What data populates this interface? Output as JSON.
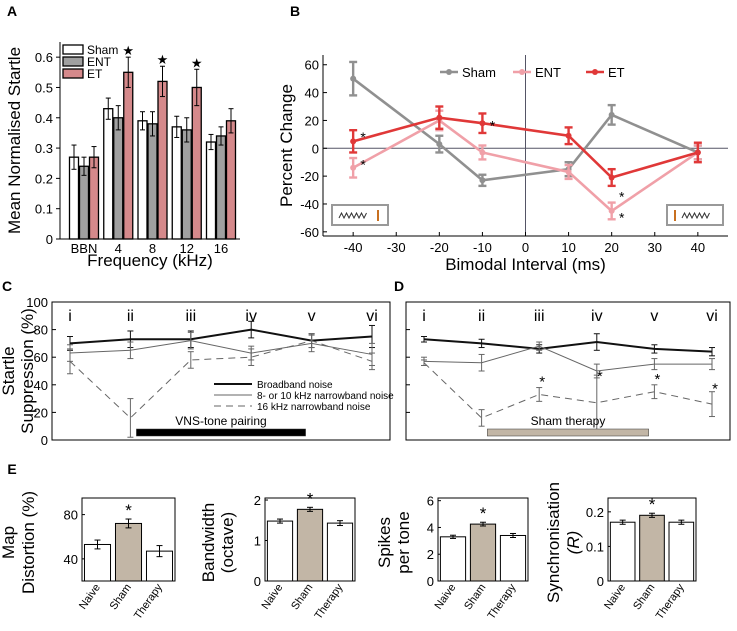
{
  "chart_data": [
    {
      "id": "A",
      "panel_label": "A",
      "type": "bar",
      "ylabel": "Mean Normalised Startle",
      "xlabel": "Frequency (kHz)",
      "ylim": [
        0,
        0.65
      ],
      "yticks": [
        0,
        0.1,
        0.2,
        0.3,
        0.4,
        0.5,
        0.6
      ],
      "ytick_labels": [
        "0",
        "0.1",
        "0.2",
        "0.3",
        "0.4",
        "0.5",
        "0.6"
      ],
      "categories": [
        "BBN",
        "4",
        "8",
        "12",
        "16"
      ],
      "series": [
        {
          "name": "Sham",
          "color": "#ffffff",
          "values": [
            0.27,
            0.43,
            0.39,
            0.37,
            0.32
          ],
          "errors": [
            0.04,
            0.035,
            0.03,
            0.035,
            0.025
          ]
        },
        {
          "name": "ENT",
          "color": "#a0a0a0",
          "values": [
            0.24,
            0.4,
            0.38,
            0.36,
            0.34
          ],
          "errors": [
            0.03,
            0.04,
            0.04,
            0.04,
            0.03
          ]
        },
        {
          "name": "ET",
          "color": "#d5898b",
          "values": [
            0.27,
            0.55,
            0.52,
            0.5,
            0.39
          ],
          "errors": [
            0.035,
            0.05,
            0.05,
            0.06,
            0.04
          ]
        }
      ],
      "significance_marks": [
        {
          "category": "4",
          "symbol": "★"
        },
        {
          "category": "8",
          "symbol": "★"
        },
        {
          "category": "12",
          "symbol": "★"
        }
      ]
    },
    {
      "id": "B",
      "panel_label": "B",
      "type": "line",
      "ylabel": "Percent Change",
      "xlabel": "Bimodal Interval (ms)",
      "xlim": [
        -47,
        47
      ],
      "ylim": [
        -63,
        67
      ],
      "xticks": [
        -40,
        -30,
        -20,
        -10,
        0,
        10,
        20,
        30,
        40
      ],
      "xtick_labels": [
        "-40",
        "-30",
        "-20",
        "-10",
        "0",
        "10",
        "20",
        "30",
        "40"
      ],
      "yticks": [
        -60,
        -40,
        -20,
        0,
        20,
        40,
        60
      ],
      "ytick_labels": [
        "-60",
        "-40",
        "-20",
        "0",
        "20",
        "40",
        "60"
      ],
      "x": [
        -40,
        -20,
        -10,
        10,
        20,
        40
      ],
      "series": [
        {
          "name": "Sham",
          "color": "#909090",
          "values": [
            50,
            3,
            -23,
            -15,
            24,
            -3
          ],
          "errors": [
            12,
            6,
            4,
            5,
            7,
            5
          ]
        },
        {
          "name": "ENT",
          "color": "#f0a0a8",
          "values": [
            -14,
            20,
            -3,
            -17,
            -45,
            -3
          ],
          "errors": [
            7,
            7,
            5,
            5,
            6,
            5
          ]
        },
        {
          "name": "ET",
          "color": "#e03838",
          "values": [
            5,
            22,
            18,
            9,
            -21,
            -3
          ],
          "errors": [
            8,
            8,
            7,
            6,
            6,
            7
          ]
        }
      ],
      "significance_marks": [
        {
          "x": -40,
          "y": 9,
          "symbol": "*"
        },
        {
          "x": -40,
          "y": -11,
          "symbol": "*"
        },
        {
          "x": -10,
          "y": 17,
          "symbol": "*"
        },
        {
          "x": 20,
          "y": -34,
          "symbol": "*"
        },
        {
          "x": 20,
          "y": -49,
          "symbol": "*"
        }
      ]
    },
    {
      "id": "C",
      "panel_label": "C",
      "type": "line",
      "ylabel_lines": [
        "Startle",
        "Suppression (%)"
      ],
      "ylim": [
        0,
        100
      ],
      "yticks": [
        0,
        20,
        40,
        60,
        80,
        100
      ],
      "ytick_labels": [
        "0",
        "20",
        "40",
        "60",
        "80",
        "100"
      ],
      "session_labels": [
        "i",
        "ii",
        "iii",
        "iv",
        "v",
        "vi"
      ],
      "legend": [
        "Broadband noise",
        "8-  or 10 kHz narrowband noise",
        "16 kHz narrowband noise"
      ],
      "bar_label": "VNS-tone pairing",
      "bar_color": "#000000",
      "bar_range": [
        1.1,
        3.9
      ],
      "series": [
        {
          "name": "Broadband noise",
          "style": "solid-thick",
          "values": [
            70,
            73,
            73,
            80,
            72,
            75
          ],
          "errors": [
            5,
            6,
            6,
            6,
            5,
            8
          ]
        },
        {
          "name": "8-  or 10 kHz narrowband noise",
          "style": "solid-thin",
          "values": [
            63,
            65,
            72,
            63,
            70,
            62
          ],
          "errors": [
            6,
            6,
            6,
            5,
            6,
            8
          ]
        },
        {
          "name": "16 kHz narrowband noise",
          "style": "dashed",
          "values": [
            57,
            16,
            58,
            60,
            72,
            57
          ],
          "errors": [
            9,
            14,
            6,
            6,
            5,
            6
          ]
        }
      ]
    },
    {
      "id": "D",
      "panel_label": "D",
      "type": "line",
      "ylim": [
        0,
        100
      ],
      "yticks": [
        0,
        20,
        40,
        60,
        80,
        100
      ],
      "session_labels": [
        "i",
        "ii",
        "iii",
        "iv",
        "v",
        "vi"
      ],
      "bar_label": "Sham therapy",
      "bar_color": "#c2b6a6",
      "bar_range": [
        1.1,
        3.9
      ],
      "series": [
        {
          "name": "Broadband noise",
          "style": "solid-thick",
          "values": [
            73,
            70,
            66,
            71,
            66,
            64
          ],
          "errors": [
            2,
            3,
            3,
            6,
            3,
            3
          ]
        },
        {
          "name": "8-  or 10 kHz narrowband noise",
          "style": "solid-thin",
          "values": [
            57,
            56,
            68,
            50,
            55,
            55
          ],
          "errors": [
            3,
            6,
            3,
            5,
            4,
            4
          ]
        },
        {
          "name": "16 kHz narrowband noise",
          "style": "dashed",
          "values": [
            56,
            16,
            33,
            27,
            35,
            26
          ],
          "errors": [
            2,
            6,
            5,
            20,
            5,
            9
          ]
        }
      ],
      "significance_marks": [
        {
          "session": 2,
          "y": 43,
          "symbol": "*"
        },
        {
          "session": 3,
          "y": 47,
          "symbol": "*"
        },
        {
          "session": 4,
          "y": 45,
          "symbol": "*"
        },
        {
          "session": 5,
          "y": 38,
          "symbol": "*"
        }
      ]
    },
    {
      "id": "E1",
      "panel_label": "E",
      "type": "bar",
      "ylabel_lines": [
        "Map",
        "Distortion (%)"
      ],
      "ylim": [
        20,
        95
      ],
      "yticks": [
        40,
        80
      ],
      "ytick_labels": [
        "40",
        "80"
      ],
      "categories": [
        "Naive",
        "Sham",
        "Therapy"
      ],
      "values": [
        53,
        72,
        47
      ],
      "errors": [
        4,
        4,
        5
      ],
      "colors": [
        "#ffffff",
        "#c2b6a6",
        "#ffffff"
      ],
      "significance_marks": [
        {
          "category": "Sham",
          "symbol": "*"
        }
      ]
    },
    {
      "id": "E2",
      "type": "bar",
      "ylabel_lines": [
        "Bandwidth",
        "(octave)"
      ],
      "ylim": [
        0,
        2.05
      ],
      "yticks": [
        0,
        1,
        2
      ],
      "ytick_labels": [
        "0",
        "1",
        "2"
      ],
      "categories": [
        "Naive",
        "Sham",
        "Therapy"
      ],
      "values": [
        1.48,
        1.77,
        1.43
      ],
      "errors": [
        0.05,
        0.05,
        0.06
      ],
      "colors": [
        "#ffffff",
        "#c2b6a6",
        "#ffffff"
      ],
      "significance_marks": [
        {
          "category": "Sham",
          "symbol": "*"
        }
      ]
    },
    {
      "id": "E3",
      "type": "bar",
      "ylabel_lines": [
        "Spikes",
        "per tone"
      ],
      "ylim": [
        0,
        6.2
      ],
      "yticks": [
        0,
        2,
        4,
        6
      ],
      "ytick_labels": [
        "0",
        "2",
        "4",
        "6"
      ],
      "categories": [
        "Naive",
        "Sham",
        "Therapy"
      ],
      "values": [
        3.3,
        4.25,
        3.4
      ],
      "errors": [
        0.12,
        0.14,
        0.15
      ],
      "colors": [
        "#ffffff",
        "#c2b6a6",
        "#ffffff"
      ],
      "significance_marks": [
        {
          "category": "Sham",
          "symbol": "*"
        }
      ]
    },
    {
      "id": "E4",
      "type": "bar",
      "ylabel_lines": [
        "Synchronisation",
        "(R)"
      ],
      "ylim": [
        0,
        0.24
      ],
      "yticks": [
        0,
        0.1,
        0.2
      ],
      "ytick_labels": [
        "0",
        "0.1",
        "0.2"
      ],
      "categories": [
        "Naive",
        "Sham",
        "Therapy"
      ],
      "values": [
        0.17,
        0.19,
        0.17
      ],
      "errors": [
        0.006,
        0.006,
        0.006
      ],
      "colors": [
        "#ffffff",
        "#c2b6a6",
        "#ffffff"
      ],
      "significance_marks": [
        {
          "category": "Sham",
          "symbol": "*"
        }
      ]
    }
  ]
}
